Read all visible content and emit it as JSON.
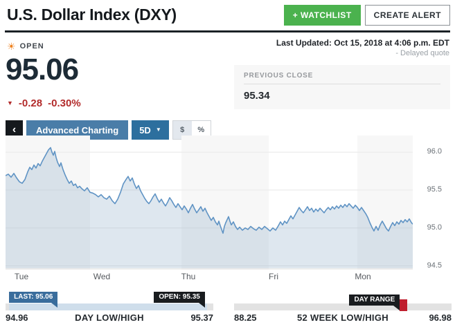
{
  "header": {
    "title": "U.S. Dollar Index (DXY)",
    "watchlist_label": "+ WATCHLIST",
    "create_alert_label": "CREATE ALERT"
  },
  "quote": {
    "status": "OPEN",
    "price": "95.06",
    "change": "-0.28",
    "change_pct": "-0.30%",
    "down_arrow": "▼",
    "last_updated": "Last Updated: Oct 15, 2018 at 4:06 p.m. EDT",
    "delayed_note": "- Delayed quote",
    "previous_close_label": "PREVIOUS CLOSE",
    "previous_close": "95.34"
  },
  "toolbar": {
    "back_chevron": "‹",
    "advanced_charting": "Advanced Charting",
    "range": "5D",
    "caret": "▼",
    "dollar": "$",
    "percent": "%"
  },
  "chart_data": {
    "type": "area",
    "title": "U.S. Dollar Index (DXY) 5-day price chart",
    "x_labels": [
      "Tue",
      "Wed",
      "Thu",
      "Fri",
      "Mon"
    ],
    "x_label_pos": [
      23,
      139,
      264,
      387,
      516
    ],
    "y_ticks": [
      96.0,
      95.5,
      95.0,
      94.5
    ],
    "ylim": {
      "ymin": 94.45,
      "ymax": 96.22
    },
    "grid": true,
    "legend": "none",
    "stripes": [
      {
        "x0": 0,
        "x1": 122,
        "color": "#f7f7f7"
      },
      {
        "x0": 254,
        "x1": 380,
        "color": "#f7f7f7"
      },
      {
        "x0": 508,
        "x1": 588,
        "color": "#f7f7f7"
      }
    ],
    "series": [
      [
        0,
        95.69
      ],
      [
        4,
        95.71
      ],
      [
        8,
        95.67
      ],
      [
        12,
        95.72
      ],
      [
        16,
        95.66
      ],
      [
        20,
        95.61
      ],
      [
        24,
        95.59
      ],
      [
        28,
        95.64
      ],
      [
        32,
        95.74
      ],
      [
        35,
        95.8
      ],
      [
        38,
        95.77
      ],
      [
        41,
        95.83
      ],
      [
        44,
        95.79
      ],
      [
        47,
        95.85
      ],
      [
        50,
        95.82
      ],
      [
        53,
        95.88
      ],
      [
        56,
        95.93
      ],
      [
        59,
        95.98
      ],
      [
        62,
        96.03
      ],
      [
        65,
        96.06
      ],
      [
        67,
        96.0
      ],
      [
        69,
        95.96
      ],
      [
        71,
        96.01
      ],
      [
        73,
        95.93
      ],
      [
        75,
        95.87
      ],
      [
        78,
        95.81
      ],
      [
        80,
        95.86
      ],
      [
        83,
        95.77
      ],
      [
        86,
        95.7
      ],
      [
        89,
        95.64
      ],
      [
        92,
        95.59
      ],
      [
        95,
        95.62
      ],
      [
        98,
        95.56
      ],
      [
        101,
        95.58
      ],
      [
        104,
        95.53
      ],
      [
        107,
        95.55
      ],
      [
        110,
        95.52
      ],
      [
        114,
        95.49
      ],
      [
        118,
        95.53
      ],
      [
        122,
        95.47
      ],
      [
        126,
        95.46
      ],
      [
        130,
        95.44
      ],
      [
        134,
        95.41
      ],
      [
        138,
        95.44
      ],
      [
        142,
        95.4
      ],
      [
        146,
        95.38
      ],
      [
        150,
        95.42
      ],
      [
        154,
        95.36
      ],
      [
        158,
        95.32
      ],
      [
        162,
        95.38
      ],
      [
        166,
        95.47
      ],
      [
        170,
        95.58
      ],
      [
        174,
        95.64
      ],
      [
        177,
        95.68
      ],
      [
        180,
        95.62
      ],
      [
        183,
        95.66
      ],
      [
        186,
        95.58
      ],
      [
        189,
        95.52
      ],
      [
        192,
        95.56
      ],
      [
        195,
        95.49
      ],
      [
        198,
        95.44
      ],
      [
        201,
        95.39
      ],
      [
        204,
        95.35
      ],
      [
        207,
        95.32
      ],
      [
        210,
        95.36
      ],
      [
        213,
        95.41
      ],
      [
        216,
        95.45
      ],
      [
        219,
        95.39
      ],
      [
        222,
        95.34
      ],
      [
        225,
        95.38
      ],
      [
        228,
        95.33
      ],
      [
        231,
        95.29
      ],
      [
        234,
        95.34
      ],
      [
        237,
        95.4
      ],
      [
        240,
        95.36
      ],
      [
        243,
        95.31
      ],
      [
        246,
        95.27
      ],
      [
        249,
        95.32
      ],
      [
        252,
        95.28
      ],
      [
        255,
        95.24
      ],
      [
        258,
        95.29
      ],
      [
        261,
        95.25
      ],
      [
        264,
        95.2
      ],
      [
        267,
        95.26
      ],
      [
        270,
        95.31
      ],
      [
        273,
        95.25
      ],
      [
        276,
        95.2
      ],
      [
        279,
        95.24
      ],
      [
        282,
        95.28
      ],
      [
        285,
        95.22
      ],
      [
        288,
        95.26
      ],
      [
        291,
        95.2
      ],
      [
        294,
        95.15
      ],
      [
        297,
        95.1
      ],
      [
        300,
        95.14
      ],
      [
        303,
        95.08
      ],
      [
        306,
        95.04
      ],
      [
        308,
        95.09
      ],
      [
        310,
        95.03
      ],
      [
        312,
        94.98
      ],
      [
        314,
        94.93
      ],
      [
        316,
        95.02
      ],
      [
        318,
        95.07
      ],
      [
        320,
        95.11
      ],
      [
        322,
        95.15
      ],
      [
        324,
        95.09
      ],
      [
        326,
        95.04
      ],
      [
        329,
        95.08
      ],
      [
        332,
        95.02
      ],
      [
        335,
        94.98
      ],
      [
        338,
        95.01
      ],
      [
        342,
        94.97
      ],
      [
        346,
        95.0
      ],
      [
        350,
        94.98
      ],
      [
        354,
        95.02
      ],
      [
        358,
        94.99
      ],
      [
        362,
        94.97
      ],
      [
        366,
        95.01
      ],
      [
        370,
        94.98
      ],
      [
        374,
        95.02
      ],
      [
        378,
        94.99
      ],
      [
        382,
        94.96
      ],
      [
        386,
        95.0
      ],
      [
        390,
        94.97
      ],
      [
        394,
        95.03
      ],
      [
        397,
        95.08
      ],
      [
        400,
        95.04
      ],
      [
        403,
        95.09
      ],
      [
        406,
        95.06
      ],
      [
        409,
        95.11
      ],
      [
        412,
        95.16
      ],
      [
        415,
        95.12
      ],
      [
        418,
        95.17
      ],
      [
        421,
        95.22
      ],
      [
        424,
        95.27
      ],
      [
        427,
        95.23
      ],
      [
        430,
        95.2
      ],
      [
        433,
        95.24
      ],
      [
        436,
        95.28
      ],
      [
        439,
        95.23
      ],
      [
        442,
        95.26
      ],
      [
        445,
        95.21
      ],
      [
        448,
        95.25
      ],
      [
        451,
        95.22
      ],
      [
        454,
        95.26
      ],
      [
        457,
        95.23
      ],
      [
        460,
        95.2
      ],
      [
        463,
        95.24
      ],
      [
        466,
        95.27
      ],
      [
        469,
        95.24
      ],
      [
        472,
        95.28
      ],
      [
        475,
        95.25
      ],
      [
        478,
        95.29
      ],
      [
        481,
        95.26
      ],
      [
        484,
        95.3
      ],
      [
        487,
        95.27
      ],
      [
        490,
        95.31
      ],
      [
        493,
        95.28
      ],
      [
        496,
        95.32
      ],
      [
        499,
        95.29
      ],
      [
        502,
        95.26
      ],
      [
        505,
        95.3
      ],
      [
        508,
        95.27
      ],
      [
        511,
        95.23
      ],
      [
        514,
        95.27
      ],
      [
        517,
        95.23
      ],
      [
        520,
        95.19
      ],
      [
        523,
        95.14
      ],
      [
        526,
        95.07
      ],
      [
        529,
        95.01
      ],
      [
        532,
        94.96
      ],
      [
        535,
        95.02
      ],
      [
        538,
        94.97
      ],
      [
        541,
        95.04
      ],
      [
        544,
        95.09
      ],
      [
        547,
        95.04
      ],
      [
        550,
        94.99
      ],
      [
        553,
        94.96
      ],
      [
        556,
        95.02
      ],
      [
        559,
        95.07
      ],
      [
        562,
        95.03
      ],
      [
        565,
        95.08
      ],
      [
        568,
        95.05
      ],
      [
        571,
        95.1
      ],
      [
        574,
        95.07
      ],
      [
        577,
        95.11
      ],
      [
        580,
        95.08
      ],
      [
        583,
        95.12
      ],
      [
        586,
        95.07
      ],
      [
        588,
        95.05
      ]
    ]
  },
  "stats": {
    "day": {
      "last_tag": "LAST: 95.06",
      "open_tag": "OPEN: 95.35",
      "low": "94.96",
      "label": "DAY LOW/HIGH",
      "high": "95.37"
    },
    "week52": {
      "range_tag": "DAY RANGE",
      "low": "88.25",
      "label": "52 WEEK LOW/HIGH",
      "high": "96.98"
    }
  },
  "colors": {
    "accent_green": "#4bb24e",
    "button_blue": "#4a7da8",
    "active_blue": "#2d6f9e",
    "negative_red": "#b22b2b",
    "line": "#5f93c4",
    "area_fill": "rgba(137,168,199,0.28)",
    "last_flag_blue": "#3a6d9c",
    "dark_flag": "#191c1f",
    "range_marker_red": "#bf1e2e"
  }
}
